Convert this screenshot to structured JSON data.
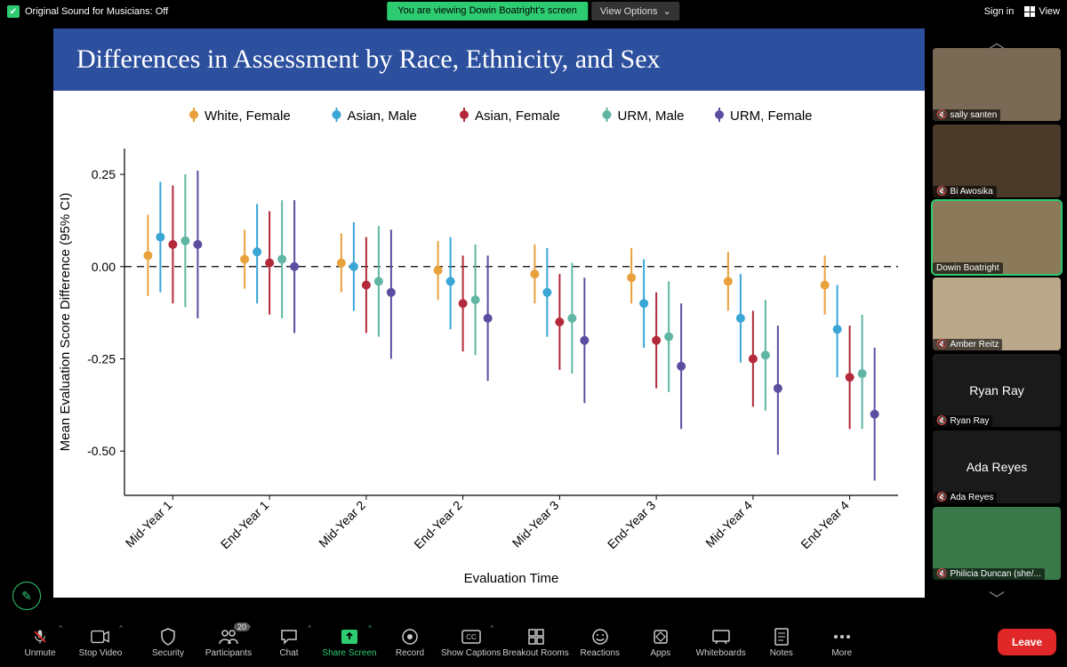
{
  "topbar": {
    "sound_status": "Original Sound for Musicians: Off",
    "sharing_text": "You are viewing Dowin Boatright's screen",
    "view_options": "View Options",
    "sign_in": "Sign in",
    "view": "View"
  },
  "slide": {
    "title": "Differences in Assessment by Race, Ethnicity, and Sex",
    "title_bg": "#2c4f9e",
    "title_color": "#ffffff"
  },
  "chart": {
    "type": "point-interval",
    "ylabel": "Mean Evaluation Score Difference (95% CI)",
    "xlabel": "Evaluation Time",
    "ylim": [
      -0.62,
      0.32
    ],
    "ytick_values": [
      -0.5,
      -0.25,
      0.0,
      0.25
    ],
    "ytick_labels": [
      "-0.50",
      "-0.25",
      "0.00",
      "0.25"
    ],
    "x_categories": [
      "Mid-Year 1",
      "End-Year 1",
      "Mid-Year 2",
      "End-Year 2",
      "Mid-Year 3",
      "End-Year 3",
      "Mid-Year 4",
      "End-Year 4"
    ],
    "refline_y": 0.0,
    "axis_color": "#000000",
    "grid_color": "#cccccc",
    "series": [
      {
        "label": "White, Female",
        "color": "#e8a13c"
      },
      {
        "label": "Asian, Male",
        "color": "#39a6d6"
      },
      {
        "label": "Asian, Female",
        "color": "#b22a3a"
      },
      {
        "label": "URM, Male",
        "color": "#5fb6a2"
      },
      {
        "label": "URM, Female",
        "color": "#5a4ea1"
      }
    ],
    "points": {
      "White, Female": [
        {
          "y": 0.03,
          "lo": -0.08,
          "hi": 0.14
        },
        {
          "y": 0.02,
          "lo": -0.06,
          "hi": 0.1
        },
        {
          "y": 0.01,
          "lo": -0.07,
          "hi": 0.09
        },
        {
          "y": -0.01,
          "lo": -0.09,
          "hi": 0.07
        },
        {
          "y": -0.02,
          "lo": -0.1,
          "hi": 0.06
        },
        {
          "y": -0.03,
          "lo": -0.1,
          "hi": 0.05
        },
        {
          "y": -0.04,
          "lo": -0.12,
          "hi": 0.04
        },
        {
          "y": -0.05,
          "lo": -0.13,
          "hi": 0.03
        }
      ],
      "Asian, Male": [
        {
          "y": 0.08,
          "lo": -0.07,
          "hi": 0.23
        },
        {
          "y": 0.04,
          "lo": -0.1,
          "hi": 0.17
        },
        {
          "y": 0.0,
          "lo": -0.12,
          "hi": 0.12
        },
        {
          "y": -0.04,
          "lo": -0.17,
          "hi": 0.08
        },
        {
          "y": -0.07,
          "lo": -0.19,
          "hi": 0.05
        },
        {
          "y": -0.1,
          "lo": -0.22,
          "hi": 0.02
        },
        {
          "y": -0.14,
          "lo": -0.26,
          "hi": -0.02
        },
        {
          "y": -0.17,
          "lo": -0.3,
          "hi": -0.05
        }
      ],
      "Asian, Female": [
        {
          "y": 0.06,
          "lo": -0.1,
          "hi": 0.22
        },
        {
          "y": 0.01,
          "lo": -0.13,
          "hi": 0.15
        },
        {
          "y": -0.05,
          "lo": -0.18,
          "hi": 0.08
        },
        {
          "y": -0.1,
          "lo": -0.23,
          "hi": 0.03
        },
        {
          "y": -0.15,
          "lo": -0.28,
          "hi": -0.02
        },
        {
          "y": -0.2,
          "lo": -0.33,
          "hi": -0.07
        },
        {
          "y": -0.25,
          "lo": -0.38,
          "hi": -0.12
        },
        {
          "y": -0.3,
          "lo": -0.44,
          "hi": -0.16
        }
      ],
      "URM, Male": [
        {
          "y": 0.07,
          "lo": -0.11,
          "hi": 0.25
        },
        {
          "y": 0.02,
          "lo": -0.14,
          "hi": 0.18
        },
        {
          "y": -0.04,
          "lo": -0.19,
          "hi": 0.11
        },
        {
          "y": -0.09,
          "lo": -0.24,
          "hi": 0.06
        },
        {
          "y": -0.14,
          "lo": -0.29,
          "hi": 0.01
        },
        {
          "y": -0.19,
          "lo": -0.34,
          "hi": -0.04
        },
        {
          "y": -0.24,
          "lo": -0.39,
          "hi": -0.09
        },
        {
          "y": -0.29,
          "lo": -0.44,
          "hi": -0.13
        }
      ],
      "URM, Female": [
        {
          "y": 0.06,
          "lo": -0.14,
          "hi": 0.26
        },
        {
          "y": 0.0,
          "lo": -0.18,
          "hi": 0.18
        },
        {
          "y": -0.07,
          "lo": -0.25,
          "hi": 0.1
        },
        {
          "y": -0.14,
          "lo": -0.31,
          "hi": 0.03
        },
        {
          "y": -0.2,
          "lo": -0.37,
          "hi": -0.03
        },
        {
          "y": -0.27,
          "lo": -0.44,
          "hi": -0.1
        },
        {
          "y": -0.33,
          "lo": -0.51,
          "hi": -0.16
        },
        {
          "y": -0.4,
          "lo": -0.58,
          "hi": -0.22
        }
      ]
    },
    "legend_fontsize": 15,
    "label_fontsize": 15,
    "tick_fontsize": 14,
    "point_radius": 5,
    "line_width": 2,
    "series_spacing": 14
  },
  "participants": [
    {
      "name": "sally santen",
      "muted": true,
      "video": true,
      "active": false,
      "bg": "#7a6a55"
    },
    {
      "name": "Bi Awosika",
      "muted": true,
      "video": true,
      "active": false,
      "bg": "#4a3a2a"
    },
    {
      "name": "Dowin Boatright",
      "muted": false,
      "video": true,
      "active": true,
      "bg": "#8a7a5a"
    },
    {
      "name": "Amber Reitz",
      "muted": true,
      "video": true,
      "active": false,
      "bg": "#bba88a"
    },
    {
      "name": "Ryan Ray",
      "muted": true,
      "video": false,
      "active": false,
      "bg": "#1a1a1a"
    },
    {
      "name": "Ada Reyes",
      "muted": true,
      "video": false,
      "active": false,
      "bg": "#1a1a1a"
    },
    {
      "name": "Philicia Duncan (she/...",
      "muted": true,
      "video": true,
      "active": false,
      "bg": "#3a7a4a"
    }
  ],
  "toolbar": {
    "unmute": "Unmute",
    "stop_video": "Stop Video",
    "security": "Security",
    "participants": "Participants",
    "participants_count": "20",
    "chat": "Chat",
    "share": "Share Screen",
    "record": "Record",
    "captions": "Show Captions",
    "breakout": "Breakout Rooms",
    "reactions": "Reactions",
    "apps": "Apps",
    "whiteboards": "Whiteboards",
    "notes": "Notes",
    "more": "More",
    "leave": "Leave"
  }
}
